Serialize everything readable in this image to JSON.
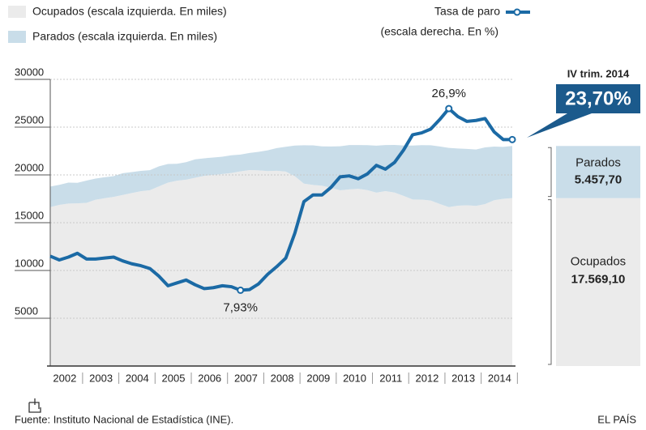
{
  "chart_data": {
    "type": "stacked_area_line",
    "legend": {
      "ocupados": "Ocupados (escala izquierda. En miles)",
      "parados": "Parados (escala izquierda. En miles)",
      "tasa": "Tasa de paro",
      "tasa_note": "(escala derecha. En %)"
    },
    "x": [
      2002,
      2002.25,
      2002.5,
      2002.75,
      2003,
      2003.25,
      2003.5,
      2003.75,
      2004,
      2004.25,
      2004.5,
      2004.75,
      2005,
      2005.25,
      2005.5,
      2005.75,
      2006,
      2006.25,
      2006.5,
      2006.75,
      2007,
      2007.25,
      2007.5,
      2007.75,
      2008,
      2008.25,
      2008.5,
      2008.75,
      2009,
      2009.25,
      2009.5,
      2009.75,
      2010,
      2010.25,
      2010.5,
      2010.75,
      2011,
      2011.25,
      2011.5,
      2011.75,
      2012,
      2012.25,
      2012.5,
      2012.75,
      2013,
      2013.25,
      2013.5,
      2013.75,
      2014,
      2014.25,
      2014.5,
      2014.75
    ],
    "xlim": [
      2002,
      2014.75
    ],
    "xticks": [
      {
        "value": 2002.4,
        "label": "2002"
      },
      {
        "value": 2003.4,
        "label": "2003"
      },
      {
        "value": 2004.4,
        "label": "2004"
      },
      {
        "value": 2005.4,
        "label": "2005"
      },
      {
        "value": 2006.4,
        "label": "2006"
      },
      {
        "value": 2007.4,
        "label": "2007"
      },
      {
        "value": 2008.4,
        "label": "2008"
      },
      {
        "value": 2009.4,
        "label": "2009"
      },
      {
        "value": 2010.4,
        "label": "2010"
      },
      {
        "value": 2011.4,
        "label": "2011"
      },
      {
        "value": 2012.4,
        "label": "2012"
      },
      {
        "value": 2013.4,
        "label": "2013"
      },
      {
        "value": 2014.4,
        "label": "2014"
      }
    ],
    "ylim": [
      0,
      30000
    ],
    "yticks": [
      5000,
      10000,
      15000,
      20000,
      25000,
      30000
    ],
    "y2lim": [
      0,
      30
    ],
    "grid": true,
    "series": [
      {
        "name": "Ocupados",
        "color": "#ebebeb",
        "stack": true,
        "values": [
          16630,
          16860,
          17000,
          17020,
          17080,
          17400,
          17560,
          17700,
          17900,
          18100,
          18290,
          18400,
          18800,
          19200,
          19400,
          19500,
          19700,
          19900,
          20000,
          20100,
          20200,
          20370,
          20510,
          20480,
          20400,
          20430,
          20350,
          19860,
          19090,
          18950,
          18870,
          18650,
          18390,
          18480,
          18550,
          18410,
          18150,
          18300,
          18160,
          17810,
          17430,
          17420,
          17320,
          16960,
          16630,
          16780,
          16820,
          16760,
          16950,
          17350,
          17500,
          17569.1
        ]
      },
      {
        "name": "Parados",
        "color": "#c9dde9",
        "stack": true,
        "values": [
          2150,
          2100,
          2200,
          2150,
          2330,
          2220,
          2200,
          2170,
          2280,
          2200,
          2130,
          2100,
          2100,
          1940,
          1760,
          1840,
          1930,
          1840,
          1820,
          1810,
          1860,
          1760,
          1790,
          1930,
          2170,
          2380,
          2600,
          3210,
          4010,
          4140,
          4120,
          4330,
          4610,
          4650,
          4570,
          4700,
          4910,
          4830,
          4980,
          5270,
          5640,
          5690,
          5780,
          6020,
          6200,
          5980,
          5900,
          5900,
          5930,
          5620,
          5430,
          5457.7
        ]
      },
      {
        "name": "Tasa de paro",
        "color": "#1b6aa5",
        "axis": "y2",
        "values": [
          11.5,
          11.1,
          11.4,
          11.8,
          11.2,
          11.2,
          11.3,
          11.4,
          11.0,
          10.7,
          10.5,
          10.2,
          9.4,
          8.4,
          8.7,
          9.0,
          8.5,
          8.1,
          8.2,
          8.4,
          8.3,
          7.93,
          8.0,
          8.6,
          9.6,
          10.4,
          11.3,
          13.9,
          17.2,
          17.9,
          17.9,
          18.7,
          19.8,
          19.9,
          19.6,
          20.1,
          21.0,
          20.6,
          21.3,
          22.6,
          24.2,
          24.4,
          24.8,
          25.8,
          26.94,
          26.1,
          25.6,
          25.7,
          25.9,
          24.5,
          23.7,
          23.7
        ],
        "value_labels": [
          null,
          null,
          null,
          null,
          null,
          null,
          null,
          null,
          null,
          null,
          null,
          null,
          null,
          null,
          null,
          null,
          null,
          null,
          null,
          null,
          null,
          "7,93%",
          null,
          null,
          null,
          null,
          null,
          null,
          null,
          null,
          null,
          null,
          null,
          null,
          null,
          null,
          null,
          null,
          null,
          null,
          null,
          null,
          null,
          null,
          "26,9%",
          null,
          null,
          null,
          null,
          null,
          null,
          null
        ]
      }
    ],
    "callout": {
      "period": "IV trim. 2014",
      "rate": "23,70%",
      "parados_label": "Parados",
      "parados": "5.457,70",
      "ocupados_label": "Ocupados",
      "ocupados": "17.569,10"
    },
    "source": "Fuente: Instituto Nacional de Estadística (INE).",
    "brand": "EL PAÍS"
  }
}
